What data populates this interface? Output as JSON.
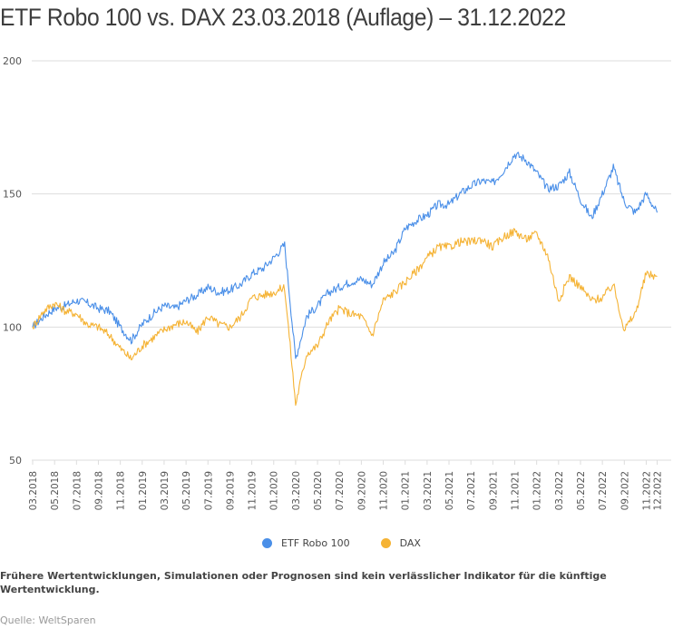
{
  "title": "ETF Robo 100 vs. DAX 23.03.2018 (Auflage) – 31.12.2022",
  "legend": [
    {
      "label": "ETF Robo 100",
      "color": "#4a8fe8"
    },
    {
      "label": "DAX",
      "color": "#f5b335"
    }
  ],
  "note": "Frühere Wertentwicklungen, Simulationen oder Prognosen sind kein verlässlicher Indikator für die künftige Wertentwicklung.",
  "source": "Quelle: WeltSparen",
  "chart_data": {
    "type": "line",
    "title": "ETF Robo 100 vs. DAX 23.03.2018 (Auflage) – 31.12.2022",
    "xlabel": "",
    "ylabel": "",
    "ylim": [
      50,
      200
    ],
    "yticks": [
      50,
      100,
      150,
      200
    ],
    "grid": true,
    "legend_position": "bottom",
    "x_tick_labels": [
      "03.2018",
      "05.2018",
      "07.2018",
      "09.2018",
      "11.2018",
      "01.2019",
      "03.2019",
      "05.2019",
      "07.2019",
      "09.2019",
      "11.2019",
      "01.2020",
      "03.2020",
      "05.2020",
      "07.2020",
      "09.2020",
      "11.2020",
      "01.2021",
      "03.2021",
      "05.2021",
      "07.2021",
      "09.2021",
      "11.2021",
      "01.2022",
      "03.2022",
      "05.2022",
      "07.2022",
      "09.2022",
      "11.2022",
      "12.2022"
    ],
    "x": [
      "03.2018",
      "04.2018",
      "05.2018",
      "06.2018",
      "07.2018",
      "08.2018",
      "09.2018",
      "10.2018",
      "11.2018",
      "12.2018",
      "01.2019",
      "02.2019",
      "03.2019",
      "04.2019",
      "05.2019",
      "06.2019",
      "07.2019",
      "08.2019",
      "09.2019",
      "10.2019",
      "11.2019",
      "12.2019",
      "01.2020",
      "02.2020",
      "03.2020",
      "04.2020",
      "05.2020",
      "06.2020",
      "07.2020",
      "08.2020",
      "09.2020",
      "10.2020",
      "11.2020",
      "12.2020",
      "01.2021",
      "02.2021",
      "03.2021",
      "04.2021",
      "05.2021",
      "06.2021",
      "07.2021",
      "08.2021",
      "09.2021",
      "10.2021",
      "11.2021",
      "12.2021",
      "01.2022",
      "02.2022",
      "03.2022",
      "04.2022",
      "05.2022",
      "06.2022",
      "07.2022",
      "08.2022",
      "09.2022",
      "10.2022",
      "11.2022",
      "12.2022"
    ],
    "series": [
      {
        "name": "ETF Robo 100",
        "color": "#4a8fe8",
        "values": [
          100,
          104,
          107,
          108,
          110,
          109,
          107,
          106,
          100,
          95,
          101,
          105,
          108,
          107,
          110,
          112,
          115,
          113,
          114,
          116,
          120,
          122,
          126,
          131,
          88,
          104,
          108,
          113,
          115,
          117,
          118,
          116,
          124,
          128,
          137,
          140,
          142,
          146,
          146,
          150,
          153,
          155,
          154,
          159,
          165,
          163,
          158,
          152,
          153,
          158,
          148,
          141,
          150,
          160,
          147,
          143,
          150,
          143
        ]
      },
      {
        "name": "DAX",
        "color": "#f5b335",
        "values": [
          100,
          106,
          109,
          106,
          105,
          101,
          100,
          97,
          92,
          88,
          93,
          96,
          99,
          101,
          102,
          98,
          104,
          101,
          100,
          104,
          111,
          112,
          113,
          115,
          71,
          90,
          93,
          102,
          107,
          105,
          104,
          97,
          110,
          113,
          117,
          121,
          126,
          130,
          130,
          132,
          132,
          133,
          130,
          134,
          136,
          133,
          135,
          127,
          110,
          119,
          115,
          110,
          111,
          116,
          99,
          105,
          120,
          119
        ]
      }
    ]
  }
}
